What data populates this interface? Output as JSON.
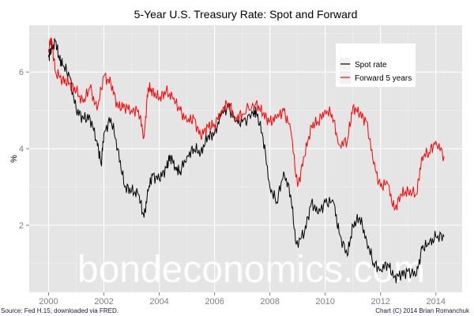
{
  "chart_data": {
    "type": "line",
    "title": "5-Year U.S. Treasury Rate: Spot and Forward",
    "xlabel": "",
    "ylabel": "%",
    "xlim": [
      1999.3,
      2014.95
    ],
    "ylim": [
      0.25,
      7.22
    ],
    "x_ticks": [
      2000,
      2002,
      2004,
      2006,
      2008,
      2010,
      2012,
      2014
    ],
    "y_ticks": [
      2,
      4,
      6
    ],
    "grid": true,
    "legend_position": "top-right",
    "series": [
      {
        "name": "Spot rate",
        "color": "#000000",
        "x": [
          2000.0,
          2000.1,
          2000.25,
          2000.4,
          2000.5,
          2000.75,
          2001.0,
          2001.25,
          2001.5,
          2001.75,
          2001.9,
          2002.0,
          2002.25,
          2002.5,
          2002.75,
          2003.0,
          2003.25,
          2003.45,
          2003.6,
          2003.75,
          2004.0,
          2004.25,
          2004.4,
          2004.6,
          2004.75,
          2005.0,
          2005.25,
          2005.5,
          2005.75,
          2006.0,
          2006.25,
          2006.5,
          2006.75,
          2007.0,
          2007.4,
          2007.5,
          2007.75,
          2008.0,
          2008.25,
          2008.5,
          2008.75,
          2008.95,
          2009.25,
          2009.5,
          2009.75,
          2010.0,
          2010.3,
          2010.5,
          2010.8,
          2011.0,
          2011.25,
          2011.5,
          2011.75,
          2012.0,
          2012.25,
          2012.5,
          2012.75,
          2013.0,
          2013.3,
          2013.5,
          2013.75,
          2014.0,
          2014.3
        ],
        "y": [
          6.4,
          6.6,
          6.8,
          6.3,
          6.2,
          5.9,
          5.0,
          4.8,
          4.8,
          4.2,
          3.6,
          4.4,
          4.8,
          4.0,
          3.0,
          2.9,
          2.8,
          2.2,
          2.9,
          3.3,
          3.2,
          3.5,
          3.8,
          3.5,
          3.4,
          3.8,
          4.0,
          3.9,
          4.3,
          4.4,
          4.9,
          5.1,
          4.7,
          4.7,
          4.9,
          5.0,
          4.3,
          3.0,
          2.6,
          3.4,
          2.8,
          1.5,
          1.8,
          2.6,
          2.3,
          2.6,
          2.6,
          1.8,
          1.2,
          2.0,
          2.2,
          1.6,
          1.0,
          0.85,
          1.0,
          0.65,
          0.7,
          0.8,
          0.7,
          1.4,
          1.5,
          1.7,
          1.7
        ]
      },
      {
        "name": "Forward 5 years",
        "color": "#FF0000",
        "x": [
          2000.0,
          2000.1,
          2000.25,
          2000.5,
          2000.75,
          2001.0,
          2001.25,
          2001.5,
          2001.75,
          2002.0,
          2002.25,
          2002.5,
          2002.75,
          2003.0,
          2003.25,
          2003.45,
          2003.6,
          2003.75,
          2004.0,
          2004.25,
          2004.5,
          2004.75,
          2005.0,
          2005.25,
          2005.5,
          2005.75,
          2006.0,
          2006.25,
          2006.5,
          2006.75,
          2007.0,
          2007.5,
          2007.75,
          2008.0,
          2008.25,
          2008.5,
          2008.75,
          2009.0,
          2009.25,
          2009.5,
          2009.75,
          2010.0,
          2010.25,
          2010.5,
          2010.8,
          2011.0,
          2011.25,
          2011.5,
          2011.75,
          2012.0,
          2012.25,
          2012.5,
          2012.75,
          2013.0,
          2013.3,
          2013.5,
          2013.75,
          2014.0,
          2014.3
        ],
        "y": [
          6.6,
          6.9,
          6.0,
          5.8,
          5.7,
          5.5,
          5.2,
          5.6,
          5.0,
          5.9,
          5.7,
          5.1,
          5.1,
          5.0,
          5.0,
          4.3,
          5.6,
          5.5,
          5.3,
          5.5,
          5.3,
          5.0,
          4.7,
          4.8,
          4.3,
          4.6,
          4.6,
          5.0,
          5.2,
          4.8,
          4.9,
          5.2,
          4.9,
          4.7,
          4.8,
          5.0,
          4.5,
          3.0,
          3.8,
          4.6,
          4.7,
          5.0,
          4.9,
          4.1,
          4.2,
          5.1,
          4.9,
          4.7,
          3.6,
          3.0,
          3.1,
          2.4,
          2.8,
          2.9,
          2.8,
          3.8,
          3.9,
          4.2,
          3.8
        ]
      }
    ]
  },
  "watermark": "bondeconomics.com",
  "caption_left": "Source: Fed H.15; downloaded via FRED.",
  "caption_right": "Chart (C) 2014 Brian Romanchuk"
}
